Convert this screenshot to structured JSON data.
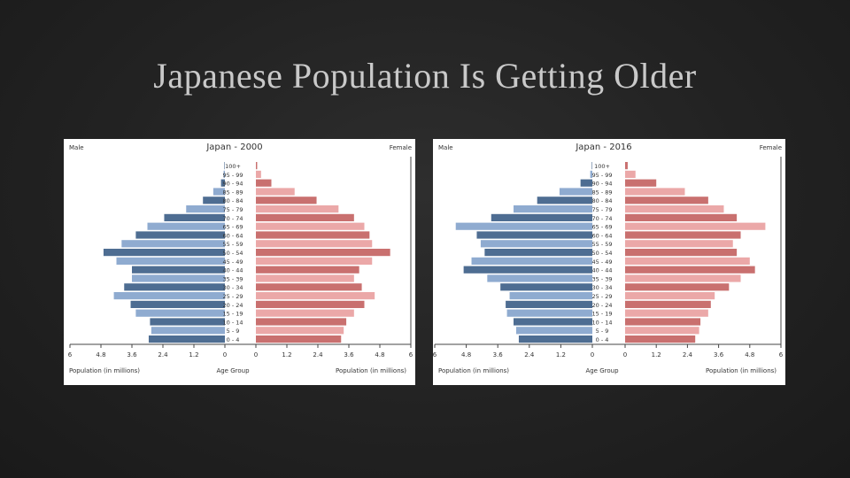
{
  "slide": {
    "title": "Japanese Population Is Getting Older"
  },
  "chart_data": [
    {
      "type": "bar",
      "title": "Japan - 2000",
      "left_label": "Male",
      "right_label": "Female",
      "x_left_label": "Population (in millions)",
      "x_center_label": "Age Group",
      "x_right_label": "Population (in millions)",
      "left_ticks": [
        "6",
        "4.8",
        "3.6",
        "2.4",
        "1.2",
        "0"
      ],
      "right_ticks": [
        "0",
        "1.2",
        "2.4",
        "3.6",
        "4.8",
        "6"
      ],
      "xlim": [
        0,
        6
      ],
      "categories": [
        "100+",
        "95 - 99",
        "90 - 94",
        "85 - 89",
        "80 - 84",
        "75 - 79",
        "70 - 74",
        "65 - 69",
        "60 - 64",
        "55 - 59",
        "50 - 54",
        "45 - 49",
        "40 - 44",
        "35 - 39",
        "30 - 34",
        "25 - 29",
        "20 - 24",
        "15 - 19",
        "10 - 14",
        "5 - 9",
        "0 - 4"
      ],
      "series": [
        {
          "name": "Male",
          "values": [
            0.02,
            0.05,
            0.15,
            0.45,
            0.85,
            1.5,
            2.35,
            3.0,
            3.45,
            4.0,
            4.7,
            4.2,
            3.6,
            3.6,
            3.9,
            4.3,
            3.65,
            3.45,
            2.9,
            2.85,
            2.95
          ]
        },
        {
          "name": "Female",
          "values": [
            0.05,
            0.2,
            0.6,
            1.5,
            2.35,
            3.2,
            3.8,
            4.2,
            4.4,
            4.5,
            5.2,
            4.5,
            4.0,
            3.8,
            4.1,
            4.6,
            4.2,
            3.8,
            3.5,
            3.4,
            3.3
          ]
        }
      ],
      "colors": {
        "male_dark": "#4e6d92",
        "male_light": "#8fabd0",
        "female_dark": "#c9706f",
        "female_light": "#eba8a8"
      }
    },
    {
      "type": "bar",
      "title": "Japan - 2016",
      "left_label": "Male",
      "right_label": "Female",
      "x_left_label": "Population (in millions)",
      "x_center_label": "Age Group",
      "x_right_label": "Population (in millions)",
      "left_ticks": [
        "6",
        "4.8",
        "3.6",
        "2.4",
        "1.2",
        "0"
      ],
      "right_ticks": [
        "0",
        "1.2",
        "2.4",
        "3.6",
        "4.8",
        "6"
      ],
      "xlim": [
        0,
        6
      ],
      "categories": [
        "100+",
        "95 - 99",
        "90 - 94",
        "85 - 89",
        "80 - 84",
        "75 - 79",
        "70 - 74",
        "65 - 69",
        "60 - 64",
        "55 - 59",
        "50 - 54",
        "45 - 49",
        "40 - 44",
        "35 - 39",
        "30 - 34",
        "25 - 29",
        "20 - 24",
        "15 - 19",
        "10 - 14",
        "5 - 9",
        "0 - 4"
      ],
      "series": [
        {
          "name": "Male",
          "values": [
            0.02,
            0.08,
            0.45,
            1.25,
            2.1,
            3.0,
            3.85,
            5.2,
            4.4,
            4.25,
            4.1,
            4.6,
            4.9,
            4.0,
            3.5,
            3.15,
            3.3,
            3.25,
            3.0,
            2.9,
            2.8
          ]
        },
        {
          "name": "Female",
          "values": [
            0.1,
            0.4,
            1.2,
            2.3,
            3.2,
            3.8,
            4.3,
            5.4,
            4.45,
            4.15,
            4.3,
            4.8,
            5.0,
            4.45,
            4.0,
            3.45,
            3.3,
            3.2,
            2.9,
            2.85,
            2.7
          ]
        }
      ],
      "colors": {
        "male_dark": "#4e6d92",
        "male_light": "#8fabd0",
        "female_dark": "#c9706f",
        "female_light": "#eba8a8"
      }
    }
  ]
}
